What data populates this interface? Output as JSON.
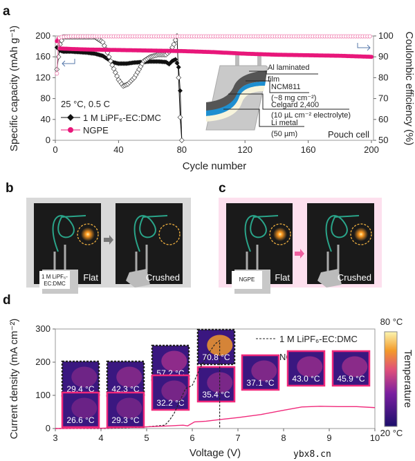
{
  "panels": {
    "a": "a",
    "b": "b",
    "c": "c",
    "d": "d"
  },
  "chart_data": [
    {
      "type": "scatter",
      "panel": "a",
      "xlabel": "Cycle number",
      "ylabel": "Specific capacity (mAh g⁻¹)",
      "y2label": "Coulombic efficiency (%)",
      "xlim": [
        0,
        200
      ],
      "ylim": [
        0,
        200
      ],
      "y2lim": [
        50,
        100
      ],
      "xticks": [
        "0",
        "40",
        "80",
        "120",
        "160",
        "200"
      ],
      "yticks": [
        "0",
        "40",
        "80",
        "120",
        "160",
        "200"
      ],
      "y2ticks": [
        "50",
        "60",
        "70",
        "80",
        "90",
        "100"
      ],
      "condition": "25 °C, 0.5 C",
      "legend": [
        "1 M LiPF₆-EC:DMC",
        "NGPE"
      ],
      "corner_label": "Pouch cell",
      "inset_labels": [
        "Al laminated",
        "film",
        "NCM811",
        "(~8 mg cm⁻²)",
        "Celgard 2,400",
        "(10 µL cm⁻² electrolyte)",
        "Li metal",
        "(50 µm)"
      ],
      "series": [
        {
          "name": "1 M LiPF6-EC:DMC capacity",
          "axis": "left",
          "color": "#111111",
          "x": [
            1,
            3,
            5,
            10,
            15,
            20,
            25,
            30,
            33,
            36,
            40,
            45,
            50,
            55,
            60,
            65,
            70,
            72,
            74,
            76,
            77,
            78,
            79,
            80
          ],
          "y": [
            178,
            172,
            170,
            170,
            169,
            168,
            166,
            162,
            156,
            150,
            147,
            147,
            149,
            150,
            151,
            151,
            150,
            146,
            152,
            155,
            148,
            140,
            95,
            0
          ]
        },
        {
          "name": "1 M LiPF6-EC:DMC CE",
          "axis": "right",
          "color": "#111111",
          "x": [
            1,
            3,
            5,
            10,
            15,
            20,
            25,
            28,
            30,
            33,
            36,
            40,
            43,
            46,
            50,
            53,
            56,
            60,
            65,
            70,
            73,
            75,
            77,
            78,
            79,
            80
          ],
          "y": [
            84,
            96,
            99.5,
            99.5,
            99.5,
            99.5,
            99.5,
            98,
            97,
            92,
            86,
            79,
            76,
            77,
            80,
            84,
            88,
            90,
            91,
            91,
            93,
            96,
            100,
            80,
            61,
            50
          ]
        },
        {
          "name": "NGPE capacity",
          "axis": "left",
          "color": "#e8177a",
          "x": [
            1,
            2,
            3,
            10,
            20,
            40,
            60,
            80,
            100,
            120,
            140,
            160,
            180,
            200
          ],
          "y": [
            190,
            195,
            176,
            175,
            174,
            173,
            172,
            171,
            169,
            166,
            164,
            163,
            162,
            160
          ]
        },
        {
          "name": "NGPE CE",
          "axis": "right",
          "color": "#f080b0",
          "x": [
            1,
            2,
            4,
            10,
            200
          ],
          "y": [
            82,
            99,
            99.5,
            99.8,
            99.8
          ]
        }
      ]
    },
    {
      "type": "line",
      "panel": "d",
      "xlabel": "Voltage (V)",
      "ylabel": "Current density (mA cm⁻²)",
      "xlim": [
        3,
        10
      ],
      "ylim": [
        0,
        300
      ],
      "xticks": [
        "3",
        "4",
        "5",
        "6",
        "7",
        "8",
        "9",
        "10"
      ],
      "yticks": [
        "0",
        "100",
        "200",
        "300"
      ],
      "legend": [
        "1 M LiPF₆-EC:DMC",
        "NGPE"
      ],
      "colorbar": {
        "label": "Temperature",
        "max": "80 °C",
        "min": "20 °C"
      },
      "series": [
        {
          "name": "1 M LiPF6-EC:DMC",
          "color": "#222222",
          "style": "dashed",
          "x": [
            3,
            4,
            4.5,
            5,
            5.4,
            5.5,
            5.6,
            5.75,
            5.85,
            6.0,
            6.1,
            6.2,
            6.35,
            6.5,
            6.6,
            6.6
          ],
          "y": [
            0,
            0,
            2,
            5,
            10,
            25,
            45,
            90,
            120,
            130,
            160,
            190,
            225,
            255,
            265,
            0
          ]
        },
        {
          "name": "NGPE",
          "color": "#f0287a",
          "style": "solid",
          "x": [
            3,
            4,
            5,
            5.5,
            5.8,
            5.9,
            6.05,
            6.3,
            6.6,
            7,
            7.5,
            8,
            8.4,
            8.8,
            9.2,
            9.6,
            10
          ],
          "y": [
            0,
            1,
            5,
            8,
            10,
            8,
            20,
            22,
            27,
            33,
            42,
            55,
            65,
            67,
            66,
            66,
            63
          ]
        }
      ],
      "thermal_labels_liquid": [
        "29.4 °C",
        "42.3 °C",
        "57.2 °C",
        "70.8 °C"
      ],
      "thermal_labels_ngpe": [
        "26.6 °C",
        "29.3 °C",
        "32.2 °C",
        "35.4 °C",
        "37.1 °C",
        "43.0 °C",
        "45.9 °C"
      ]
    }
  ],
  "photos": {
    "b": {
      "cell_label_line1": "1 M LiPF₆-",
      "cell_label_line2": "EC:DMC",
      "flat": "Flat",
      "crushed": "Crushed"
    },
    "c": {
      "cell_label": "NGPE",
      "flat": "Flat",
      "crushed": "Crushed"
    }
  },
  "watermark": "ybx8.cn"
}
